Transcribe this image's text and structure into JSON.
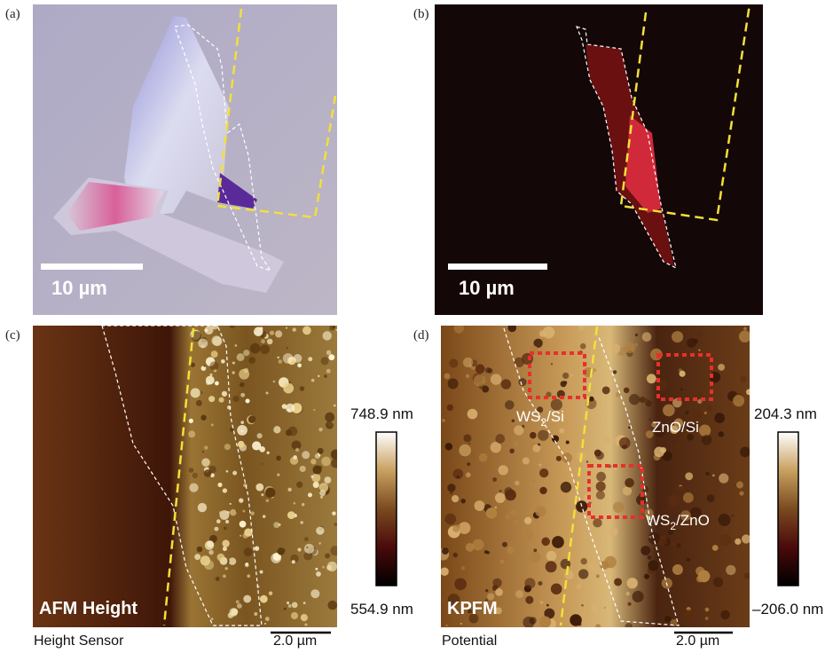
{
  "panels": [
    {
      "label": "(a)",
      "scale_bar": "10 µm"
    },
    {
      "label": "(b)",
      "scale_bar": "10 µm"
    },
    {
      "label": "(c)",
      "overlay": "AFM Height",
      "caption": "Height Sensor",
      "scale_bar": "2.0 µm",
      "colorbar": {
        "max": "748.9 nm",
        "min": "554.9 nm"
      }
    },
    {
      "label": "(d)",
      "overlay": "KPFM",
      "caption": "Potential",
      "scale_bar": "2.0 µm",
      "colorbar": {
        "max": "204.3 nm",
        "min": "–206.0 nm"
      },
      "regions": [
        {
          "main": "WS",
          "sub": "2",
          "rest": "/Si"
        },
        {
          "main": "ZnO/Si"
        },
        {
          "main": "WS",
          "sub": "2",
          "rest": "/ZnO"
        }
      ]
    }
  ]
}
